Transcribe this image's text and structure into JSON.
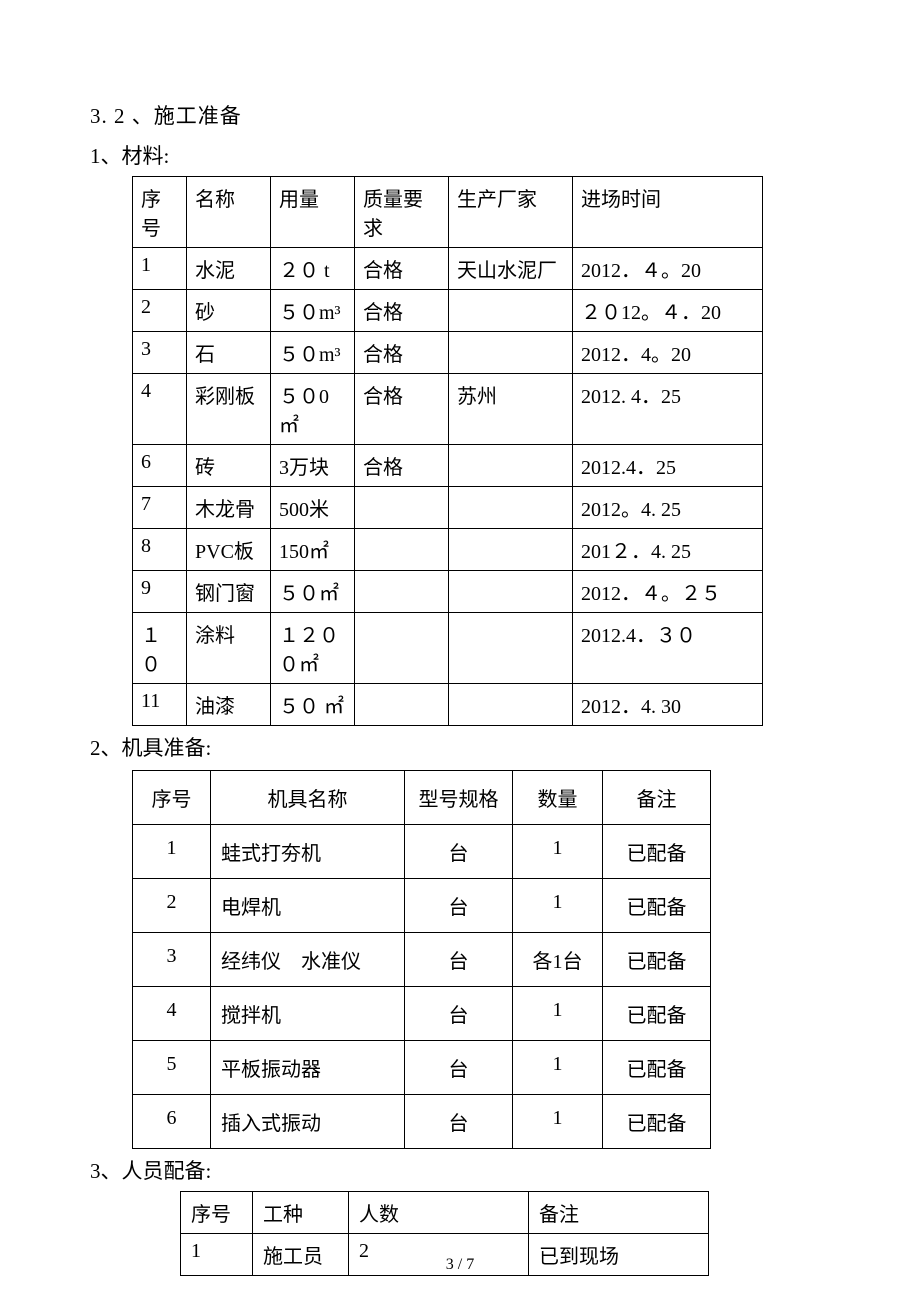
{
  "heading": "3. 2 、施工准备",
  "section1": {
    "title": "1、材料:",
    "headers": [
      "序号",
      "名称",
      "用量",
      "质量要求",
      "生产厂家",
      "进场时间"
    ],
    "rows": [
      [
        "1",
        "水泥",
        "２０ t",
        "合格",
        "天山水泥厂",
        "2012．４。20"
      ],
      [
        "2",
        "砂",
        "５０m³",
        "合格",
        "",
        "２０12。４．20"
      ],
      [
        "3",
        "石",
        "５０m³",
        "合格",
        "",
        " 2012．4。20"
      ],
      [
        "4",
        "彩刚板",
        "５０0㎡",
        "合格",
        "苏州",
        "2012. 4．25"
      ],
      [
        "6",
        "砖",
        "3万块",
        "合格",
        "",
        "2012.4．25"
      ],
      [
        "7",
        "木龙骨",
        "500米",
        "",
        "",
        "2012。4. 25"
      ],
      [
        "8",
        "PVC板",
        "150㎡",
        "",
        "",
        "201２．4. 25"
      ],
      [
        "9",
        "钢门窗",
        "５０㎡",
        "",
        "",
        "2012．４。２５"
      ],
      [
        "１０",
        "涂料",
        "１２００㎡",
        "",
        "",
        "2012.4．３０"
      ],
      [
        "11",
        "油漆",
        " ５０ ㎡",
        "",
        "",
        "2012．4. 30"
      ]
    ]
  },
  "section2": {
    "title": "2、机具准备:",
    "headers": [
      "序号",
      "机具名称",
      "型号规格",
      "数量",
      "备注"
    ],
    "rows": [
      [
        "1",
        "蛙式打夯机",
        "台",
        "1",
        "已配备"
      ],
      [
        "2",
        "电焊机",
        "台",
        "1",
        "已配备"
      ],
      [
        "3",
        "经纬仪　水准仪",
        "台",
        "各1台",
        "已配备"
      ],
      [
        "4",
        "搅拌机",
        "台",
        "1",
        "已配备"
      ],
      [
        "5",
        "平板振动器",
        "台",
        "1",
        "已配备"
      ],
      [
        "6",
        "插入式振动",
        "台",
        "1",
        "已配备"
      ]
    ]
  },
  "section3": {
    "title": "3、人员配备:",
    "headers": [
      "序号",
      "工种",
      "人数",
      "备注"
    ],
    "rows": [
      [
        "1",
        "施工员",
        "2",
        "已到现场"
      ]
    ]
  },
  "page": "3 / 7"
}
